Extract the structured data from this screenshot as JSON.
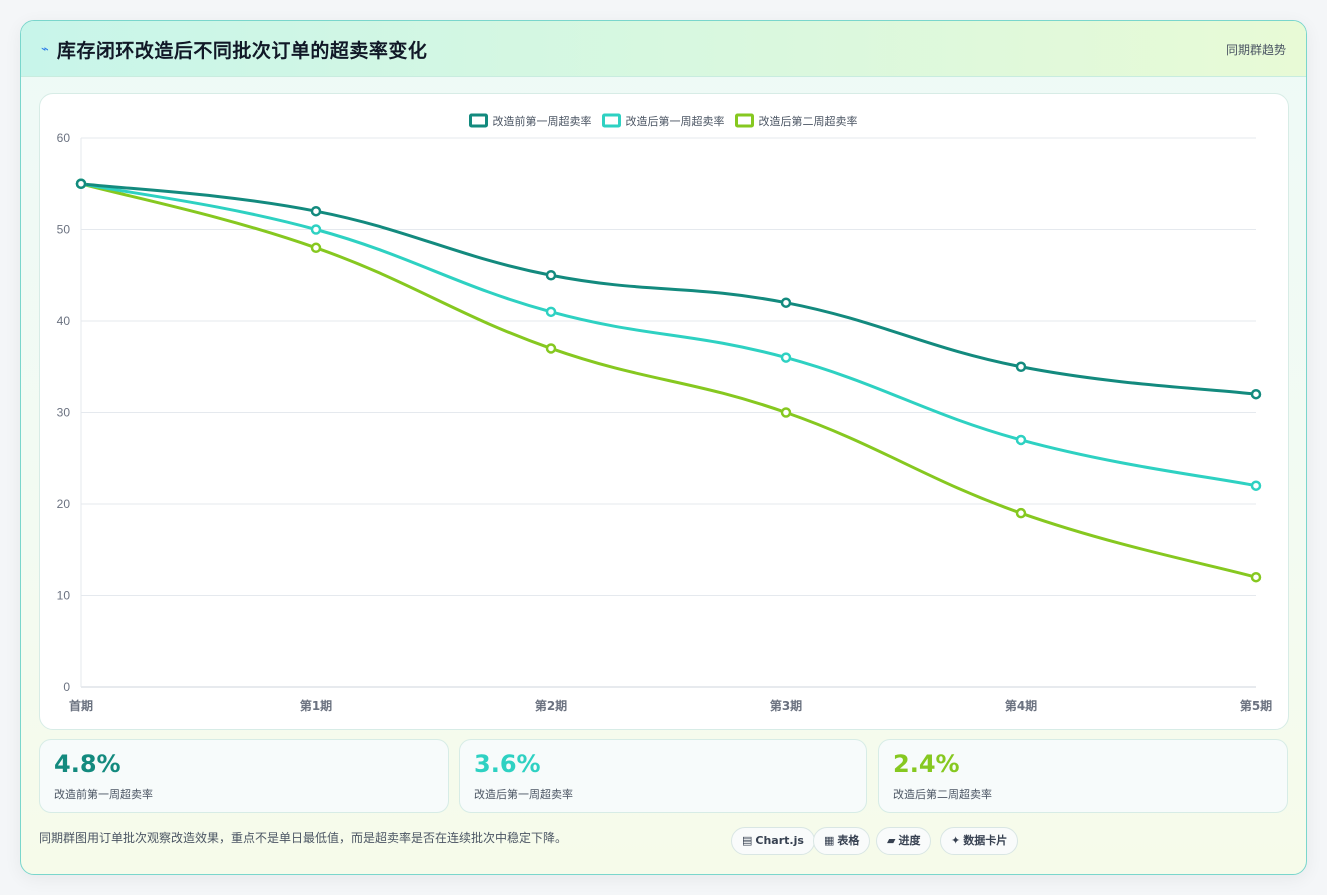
{
  "header": {
    "title": "库存闭环改造后不同批次订单的超卖率变化",
    "tag": "同期群趋势",
    "icon": "lightning-icon"
  },
  "chart_data": {
    "type": "line",
    "categories": [
      "首期",
      "第1期",
      "第2期",
      "第3期",
      "第4期",
      "第5期"
    ],
    "series": [
      {
        "name": "改造前第一周超卖率",
        "color": "#138a7e",
        "values": [
          55,
          52,
          45,
          42,
          35,
          32
        ]
      },
      {
        "name": "改造后第一周超卖率",
        "color": "#2ed1c2",
        "values": [
          55,
          50,
          41,
          36,
          27,
          22
        ]
      },
      {
        "name": "改造后第二周超卖率",
        "color": "#86c820",
        "values": [
          55,
          48,
          37,
          30,
          19,
          12
        ]
      }
    ],
    "ylim": [
      0,
      60
    ],
    "yticks": [
      0,
      10,
      20,
      30,
      40,
      50,
      60
    ],
    "grid": true,
    "legend": "top-center"
  },
  "stats": [
    {
      "value": "4.8%",
      "label": "改造前第一周超卖率",
      "color": "#138a7e"
    },
    {
      "value": "3.6%",
      "label": "改造后第一周超卖率",
      "color": "#2ed1c2"
    },
    {
      "value": "2.4%",
      "label": "改造后第二周超卖率",
      "color": "#86c820"
    }
  ],
  "footnote": "同期群图用订单批次观察改造效果，重点不是单日最低值，而是超卖率是否在连续批次中稳定下降。",
  "pills": [
    {
      "icon": "▤",
      "label": "Chart.js"
    },
    {
      "icon": "▦",
      "label": "表格"
    },
    {
      "icon": "▰",
      "label": "进度"
    },
    {
      "icon": "✦",
      "label": "数据卡片"
    }
  ]
}
